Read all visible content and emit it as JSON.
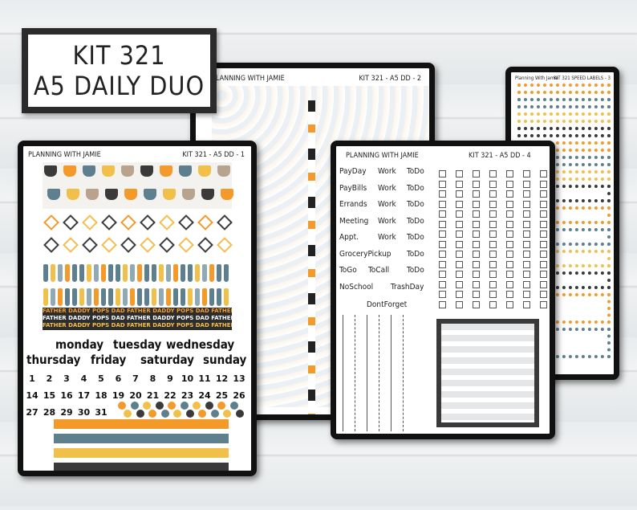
{
  "title": {
    "line1": "KIT 321",
    "line2": "A5 DAILY DUO"
  },
  "colors": {
    "orange": "#f39a2b",
    "blue": "#5d7f8e",
    "yellow": "#f1c04b",
    "charcoal": "#3a3a3a",
    "tan": "#b8a48e"
  },
  "sheet1": {
    "brand": "PLANNING WITH JAMIE",
    "code": "KIT 321 - A5 DD - 1",
    "banner_text": "FATHER DADDY POPS DAD FATHER DADDY POPS DAD FATHER DADDY POPS",
    "weekdays": [
      "monday",
      "tuesday",
      "wednesday",
      "thursday",
      "friday",
      "saturday",
      "sunday"
    ],
    "dates": [
      "1",
      "2",
      "3",
      "4",
      "5",
      "6",
      "7",
      "8",
      "9",
      "10",
      "11",
      "12",
      "13",
      "14",
      "15",
      "16",
      "17",
      "18",
      "19",
      "20",
      "21",
      "22",
      "23",
      "24",
      "25",
      "26",
      "27",
      "28",
      "29",
      "30",
      "31"
    ]
  },
  "sheet2": {
    "brand": "PLANNING WITH JAMIE",
    "code": "KIT 321 - A5 DD - 2"
  },
  "sheet3": {
    "brand": "Planning With Jamie",
    "code": "KIT 321 SPEED LABELS - 3"
  },
  "sheet4": {
    "brand": "PLANNING WITH JAMIE",
    "code": "KIT 321 - A5 DD - 4",
    "rows": [
      [
        "PayDay",
        "Work",
        "ToDo"
      ],
      [
        "PayBills",
        "Work",
        "ToDo"
      ],
      [
        "Errands",
        "Work",
        "ToDo"
      ],
      [
        "Meeting",
        "Work",
        "ToDo"
      ],
      [
        "Appt.",
        "Work",
        "ToDo"
      ],
      [
        "GroceryPickup",
        "",
        "ToDo"
      ],
      [
        "ToGo",
        "ToCall",
        "ToDo"
      ],
      [
        "NoSchool",
        "",
        "TrashDay"
      ]
    ],
    "last_label": "DontForget"
  }
}
